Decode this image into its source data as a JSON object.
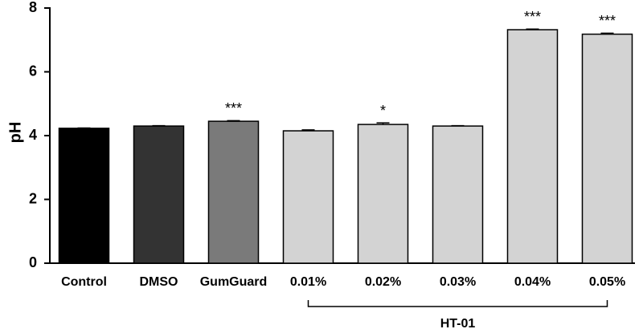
{
  "chart_data": {
    "type": "bar",
    "y_label": "pH",
    "categories": [
      "Control",
      "DMSO",
      "GumGuard",
      "0.01%",
      "0.02%",
      "0.03%",
      "0.04%",
      "0.05%"
    ],
    "values": [
      4.23,
      4.3,
      4.45,
      4.15,
      4.35,
      4.3,
      7.32,
      7.18
    ],
    "errors": [
      0.01,
      0.01,
      0.02,
      0.03,
      0.05,
      0.01,
      0.02,
      0.03
    ],
    "colors": [
      "#000000",
      "#333333",
      "#7a7a7a",
      "#d3d3d3",
      "#d3d3d3",
      "#d3d3d3",
      "#d3d3d3",
      "#d3d3d3"
    ],
    "annotations": [
      null,
      null,
      "***",
      null,
      "*",
      null,
      "***",
      "***"
    ],
    "group_label": "HT-01",
    "ylim": [
      0,
      8
    ],
    "yticks": [
      0,
      2,
      4,
      6,
      8
    ]
  }
}
